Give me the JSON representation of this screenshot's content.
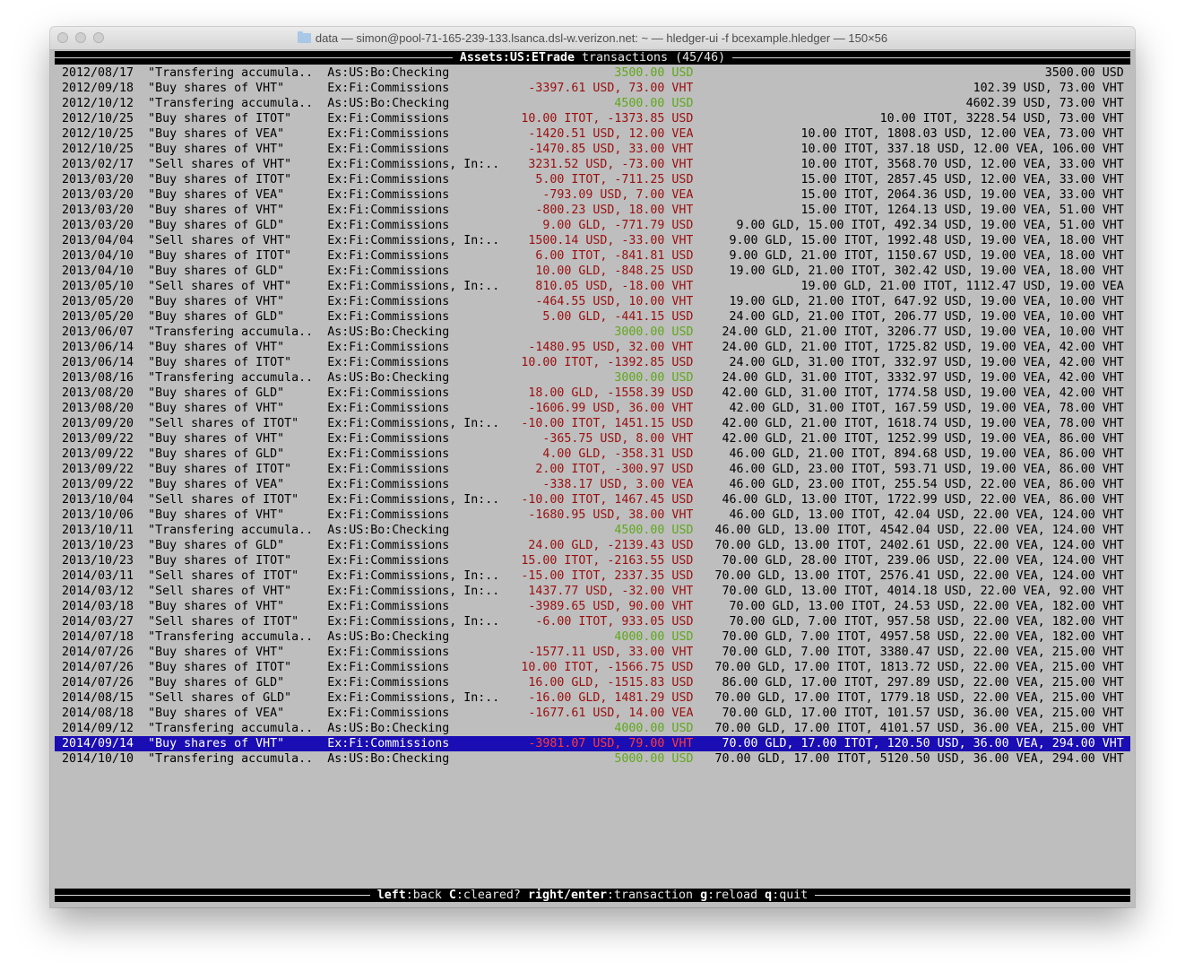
{
  "window": {
    "title": "data — simon@pool-71-165-239-133.lsanca.dsl-w.verizon.net: ~ — hledger-ui -f bcexample.hledger — 150×56"
  },
  "header": {
    "account": "Assets:US:ETrade",
    "label": "transactions",
    "position": "(45/46)"
  },
  "colors": {
    "increase": "#5fa81a",
    "decrease": "#9a0e0e",
    "selected_bg": "#1a0db3",
    "selected_decrease": "#ff3b3b",
    "background": "#bebebe"
  },
  "selected_index": 44,
  "rows": [
    {
      "date": "2012/08/17",
      "desc": "\"Transfering accumula..",
      "account": "As:US:Bo:Checking",
      "amount": "3500.00 USD",
      "balance": "3500.00 USD"
    },
    {
      "date": "2012/09/18",
      "desc": "\"Buy shares of VHT\"",
      "account": "Ex:Fi:Commissions",
      "amount": "-3397.61 USD, 73.00 VHT",
      "balance": "102.39 USD, 73.00 VHT"
    },
    {
      "date": "2012/10/12",
      "desc": "\"Transfering accumula..",
      "account": "As:US:Bo:Checking",
      "amount": "4500.00 USD",
      "balance": "4602.39 USD, 73.00 VHT"
    },
    {
      "date": "2012/10/25",
      "desc": "\"Buy shares of ITOT\"",
      "account": "Ex:Fi:Commissions",
      "amount": "10.00 ITOT, -1373.85 USD",
      "balance": "10.00 ITOT, 3228.54 USD, 73.00 VHT"
    },
    {
      "date": "2012/10/25",
      "desc": "\"Buy shares of VEA\"",
      "account": "Ex:Fi:Commissions",
      "amount": "-1420.51 USD, 12.00 VEA",
      "balance": "10.00 ITOT, 1808.03 USD, 12.00 VEA, 73.00 VHT"
    },
    {
      "date": "2012/10/25",
      "desc": "\"Buy shares of VHT\"",
      "account": "Ex:Fi:Commissions",
      "amount": "-1470.85 USD, 33.00 VHT",
      "balance": "10.00 ITOT, 337.18 USD, 12.00 VEA, 106.00 VHT"
    },
    {
      "date": "2013/02/17",
      "desc": "\"Sell shares of VHT\"",
      "account": "Ex:Fi:Commissions, In:..",
      "amount": "3231.52 USD, -73.00 VHT",
      "balance": "10.00 ITOT, 3568.70 USD, 12.00 VEA, 33.00 VHT"
    },
    {
      "date": "2013/03/20",
      "desc": "\"Buy shares of ITOT\"",
      "account": "Ex:Fi:Commissions",
      "amount": "5.00 ITOT, -711.25 USD",
      "balance": "15.00 ITOT, 2857.45 USD, 12.00 VEA, 33.00 VHT"
    },
    {
      "date": "2013/03/20",
      "desc": "\"Buy shares of VEA\"",
      "account": "Ex:Fi:Commissions",
      "amount": "-793.09 USD, 7.00 VEA",
      "balance": "15.00 ITOT, 2064.36 USD, 19.00 VEA, 33.00 VHT"
    },
    {
      "date": "2013/03/20",
      "desc": "\"Buy shares of VHT\"",
      "account": "Ex:Fi:Commissions",
      "amount": "-800.23 USD, 18.00 VHT",
      "balance": "15.00 ITOT, 1264.13 USD, 19.00 VEA, 51.00 VHT"
    },
    {
      "date": "2013/03/20",
      "desc": "\"Buy shares of GLD\"",
      "account": "Ex:Fi:Commissions",
      "amount": "9.00 GLD, -771.79 USD",
      "balance": "9.00 GLD, 15.00 ITOT, 492.34 USD, 19.00 VEA, 51.00 VHT"
    },
    {
      "date": "2013/04/04",
      "desc": "\"Sell shares of VHT\"",
      "account": "Ex:Fi:Commissions, In:..",
      "amount": "1500.14 USD, -33.00 VHT",
      "balance": "9.00 GLD, 15.00 ITOT, 1992.48 USD, 19.00 VEA, 18.00 VHT"
    },
    {
      "date": "2013/04/10",
      "desc": "\"Buy shares of ITOT\"",
      "account": "Ex:Fi:Commissions",
      "amount": "6.00 ITOT, -841.81 USD",
      "balance": "9.00 GLD, 21.00 ITOT, 1150.67 USD, 19.00 VEA, 18.00 VHT"
    },
    {
      "date": "2013/04/10",
      "desc": "\"Buy shares of GLD\"",
      "account": "Ex:Fi:Commissions",
      "amount": "10.00 GLD, -848.25 USD",
      "balance": "19.00 GLD, 21.00 ITOT, 302.42 USD, 19.00 VEA, 18.00 VHT"
    },
    {
      "date": "2013/05/10",
      "desc": "\"Sell shares of VHT\"",
      "account": "Ex:Fi:Commissions, In:..",
      "amount": "810.05 USD, -18.00 VHT",
      "balance": "19.00 GLD, 21.00 ITOT, 1112.47 USD, 19.00 VEA"
    },
    {
      "date": "2013/05/20",
      "desc": "\"Buy shares of VHT\"",
      "account": "Ex:Fi:Commissions",
      "amount": "-464.55 USD, 10.00 VHT",
      "balance": "19.00 GLD, 21.00 ITOT, 647.92 USD, 19.00 VEA, 10.00 VHT"
    },
    {
      "date": "2013/05/20",
      "desc": "\"Buy shares of GLD\"",
      "account": "Ex:Fi:Commissions",
      "amount": "5.00 GLD, -441.15 USD",
      "balance": "24.00 GLD, 21.00 ITOT, 206.77 USD, 19.00 VEA, 10.00 VHT"
    },
    {
      "date": "2013/06/07",
      "desc": "\"Transfering accumula..",
      "account": "As:US:Bo:Checking",
      "amount": "3000.00 USD",
      "balance": "24.00 GLD, 21.00 ITOT, 3206.77 USD, 19.00 VEA, 10.00 VHT"
    },
    {
      "date": "2013/06/14",
      "desc": "\"Buy shares of VHT\"",
      "account": "Ex:Fi:Commissions",
      "amount": "-1480.95 USD, 32.00 VHT",
      "balance": "24.00 GLD, 21.00 ITOT, 1725.82 USD, 19.00 VEA, 42.00 VHT"
    },
    {
      "date": "2013/06/14",
      "desc": "\"Buy shares of ITOT\"",
      "account": "Ex:Fi:Commissions",
      "amount": "10.00 ITOT, -1392.85 USD",
      "balance": "24.00 GLD, 31.00 ITOT, 332.97 USD, 19.00 VEA, 42.00 VHT"
    },
    {
      "date": "2013/08/16",
      "desc": "\"Transfering accumula..",
      "account": "As:US:Bo:Checking",
      "amount": "3000.00 USD",
      "balance": "24.00 GLD, 31.00 ITOT, 3332.97 USD, 19.00 VEA, 42.00 VHT"
    },
    {
      "date": "2013/08/20",
      "desc": "\"Buy shares of GLD\"",
      "account": "Ex:Fi:Commissions",
      "amount": "18.00 GLD, -1558.39 USD",
      "balance": "42.00 GLD, 31.00 ITOT, 1774.58 USD, 19.00 VEA, 42.00 VHT"
    },
    {
      "date": "2013/08/20",
      "desc": "\"Buy shares of VHT\"",
      "account": "Ex:Fi:Commissions",
      "amount": "-1606.99 USD, 36.00 VHT",
      "balance": "42.00 GLD, 31.00 ITOT, 167.59 USD, 19.00 VEA, 78.00 VHT"
    },
    {
      "date": "2013/09/20",
      "desc": "\"Sell shares of ITOT\"",
      "account": "Ex:Fi:Commissions, In:..",
      "amount": "-10.00 ITOT, 1451.15 USD",
      "balance": "42.00 GLD, 21.00 ITOT, 1618.74 USD, 19.00 VEA, 78.00 VHT"
    },
    {
      "date": "2013/09/22",
      "desc": "\"Buy shares of VHT\"",
      "account": "Ex:Fi:Commissions",
      "amount": "-365.75 USD, 8.00 VHT",
      "balance": "42.00 GLD, 21.00 ITOT, 1252.99 USD, 19.00 VEA, 86.00 VHT"
    },
    {
      "date": "2013/09/22",
      "desc": "\"Buy shares of GLD\"",
      "account": "Ex:Fi:Commissions",
      "amount": "4.00 GLD, -358.31 USD",
      "balance": "46.00 GLD, 21.00 ITOT, 894.68 USD, 19.00 VEA, 86.00 VHT"
    },
    {
      "date": "2013/09/22",
      "desc": "\"Buy shares of ITOT\"",
      "account": "Ex:Fi:Commissions",
      "amount": "2.00 ITOT, -300.97 USD",
      "balance": "46.00 GLD, 23.00 ITOT, 593.71 USD, 19.00 VEA, 86.00 VHT"
    },
    {
      "date": "2013/09/22",
      "desc": "\"Buy shares of VEA\"",
      "account": "Ex:Fi:Commissions",
      "amount": "-338.17 USD, 3.00 VEA",
      "balance": "46.00 GLD, 23.00 ITOT, 255.54 USD, 22.00 VEA, 86.00 VHT"
    },
    {
      "date": "2013/10/04",
      "desc": "\"Sell shares of ITOT\"",
      "account": "Ex:Fi:Commissions, In:..",
      "amount": "-10.00 ITOT, 1467.45 USD",
      "balance": "46.00 GLD, 13.00 ITOT, 1722.99 USD, 22.00 VEA, 86.00 VHT"
    },
    {
      "date": "2013/10/06",
      "desc": "\"Buy shares of VHT\"",
      "account": "Ex:Fi:Commissions",
      "amount": "-1680.95 USD, 38.00 VHT",
      "balance": "46.00 GLD, 13.00 ITOT, 42.04 USD, 22.00 VEA, 124.00 VHT"
    },
    {
      "date": "2013/10/11",
      "desc": "\"Transfering accumula..",
      "account": "As:US:Bo:Checking",
      "amount": "4500.00 USD",
      "balance": "46.00 GLD, 13.00 ITOT, 4542.04 USD, 22.00 VEA, 124.00 VHT"
    },
    {
      "date": "2013/10/23",
      "desc": "\"Buy shares of GLD\"",
      "account": "Ex:Fi:Commissions",
      "amount": "24.00 GLD, -2139.43 USD",
      "balance": "70.00 GLD, 13.00 ITOT, 2402.61 USD, 22.00 VEA, 124.00 VHT"
    },
    {
      "date": "2013/10/23",
      "desc": "\"Buy shares of ITOT\"",
      "account": "Ex:Fi:Commissions",
      "amount": "15.00 ITOT, -2163.55 USD",
      "balance": "70.00 GLD, 28.00 ITOT, 239.06 USD, 22.00 VEA, 124.00 VHT"
    },
    {
      "date": "2014/03/11",
      "desc": "\"Sell shares of ITOT\"",
      "account": "Ex:Fi:Commissions, In:..",
      "amount": "-15.00 ITOT, 2337.35 USD",
      "balance": "70.00 GLD, 13.00 ITOT, 2576.41 USD, 22.00 VEA, 124.00 VHT"
    },
    {
      "date": "2014/03/12",
      "desc": "\"Sell shares of VHT\"",
      "account": "Ex:Fi:Commissions, In:..",
      "amount": "1437.77 USD, -32.00 VHT",
      "balance": "70.00 GLD, 13.00 ITOT, 4014.18 USD, 22.00 VEA, 92.00 VHT"
    },
    {
      "date": "2014/03/18",
      "desc": "\"Buy shares of VHT\"",
      "account": "Ex:Fi:Commissions",
      "amount": "-3989.65 USD, 90.00 VHT",
      "balance": "70.00 GLD, 13.00 ITOT, 24.53 USD, 22.00 VEA, 182.00 VHT"
    },
    {
      "date": "2014/03/27",
      "desc": "\"Sell shares of ITOT\"",
      "account": "Ex:Fi:Commissions, In:..",
      "amount": "-6.00 ITOT, 933.05 USD",
      "balance": "70.00 GLD, 7.00 ITOT, 957.58 USD, 22.00 VEA, 182.00 VHT"
    },
    {
      "date": "2014/07/18",
      "desc": "\"Transfering accumula..",
      "account": "As:US:Bo:Checking",
      "amount": "4000.00 USD",
      "balance": "70.00 GLD, 7.00 ITOT, 4957.58 USD, 22.00 VEA, 182.00 VHT"
    },
    {
      "date": "2014/07/26",
      "desc": "\"Buy shares of VHT\"",
      "account": "Ex:Fi:Commissions",
      "amount": "-1577.11 USD, 33.00 VHT",
      "balance": "70.00 GLD, 7.00 ITOT, 3380.47 USD, 22.00 VEA, 215.00 VHT"
    },
    {
      "date": "2014/07/26",
      "desc": "\"Buy shares of ITOT\"",
      "account": "Ex:Fi:Commissions",
      "amount": "10.00 ITOT, -1566.75 USD",
      "balance": "70.00 GLD, 17.00 ITOT, 1813.72 USD, 22.00 VEA, 215.00 VHT"
    },
    {
      "date": "2014/07/26",
      "desc": "\"Buy shares of GLD\"",
      "account": "Ex:Fi:Commissions",
      "amount": "16.00 GLD, -1515.83 USD",
      "balance": "86.00 GLD, 17.00 ITOT, 297.89 USD, 22.00 VEA, 215.00 VHT"
    },
    {
      "date": "2014/08/15",
      "desc": "\"Sell shares of GLD\"",
      "account": "Ex:Fi:Commissions, In:..",
      "amount": "-16.00 GLD, 1481.29 USD",
      "balance": "70.00 GLD, 17.00 ITOT, 1779.18 USD, 22.00 VEA, 215.00 VHT"
    },
    {
      "date": "2014/08/18",
      "desc": "\"Buy shares of VEA\"",
      "account": "Ex:Fi:Commissions",
      "amount": "-1677.61 USD, 14.00 VEA",
      "balance": "70.00 GLD, 17.00 ITOT, 101.57 USD, 36.00 VEA, 215.00 VHT"
    },
    {
      "date": "2014/09/12",
      "desc": "\"Transfering accumula..",
      "account": "As:US:Bo:Checking",
      "amount": "4000.00 USD",
      "balance": "70.00 GLD, 17.00 ITOT, 4101.57 USD, 36.00 VEA, 215.00 VHT"
    },
    {
      "date": "2014/09/14",
      "desc": "\"Buy shares of VHT\"",
      "account": "Ex:Fi:Commissions",
      "amount": "-3981.07 USD, 79.00 VHT",
      "balance": "70.00 GLD, 17.00 ITOT, 120.50 USD, 36.00 VEA, 294.00 VHT"
    },
    {
      "date": "2014/10/10",
      "desc": "\"Transfering accumula..",
      "account": "As:US:Bo:Checking",
      "amount": "5000.00 USD",
      "balance": "70.00 GLD, 17.00 ITOT, 5120.50 USD, 36.00 VEA, 294.00 VHT"
    }
  ],
  "footer": {
    "keys": [
      {
        "key": "left",
        "action": "back"
      },
      {
        "key": "C",
        "action": "cleared?"
      },
      {
        "key": "right/enter",
        "action": "transaction"
      },
      {
        "key": "g",
        "action": "reload"
      },
      {
        "key": "q",
        "action": "quit"
      }
    ]
  }
}
